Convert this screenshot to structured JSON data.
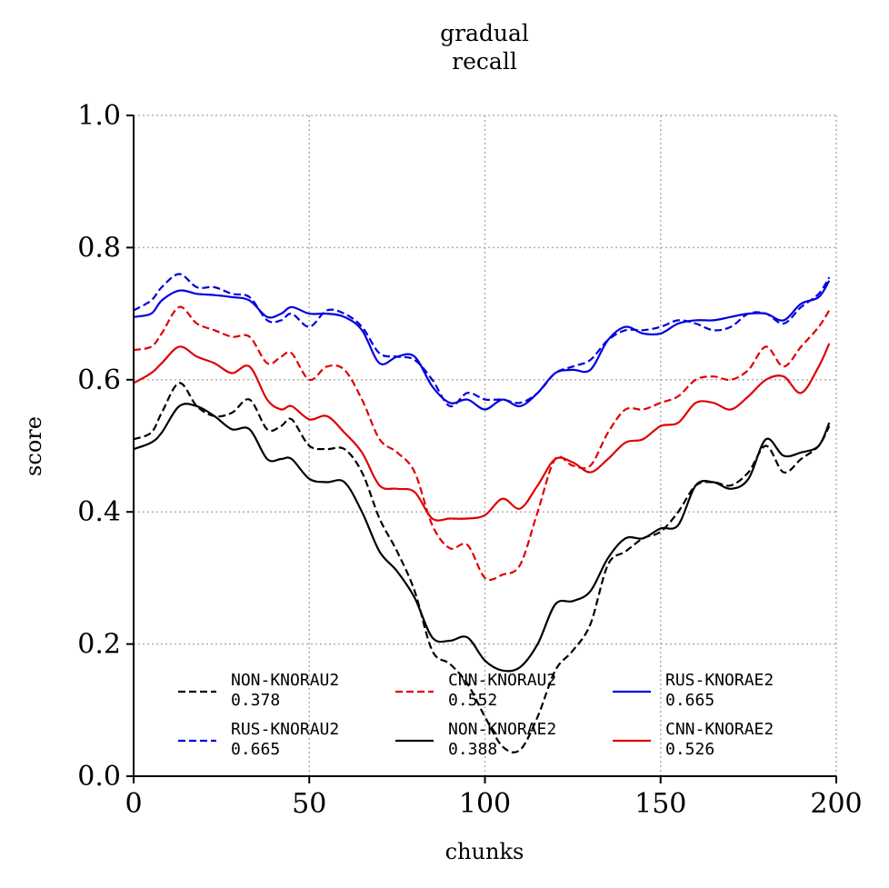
{
  "chart_data": {
    "type": "line",
    "title_line1": "gradual",
    "title_line2": "recall",
    "xlabel": "chunks",
    "ylabel": "score",
    "xlim": [
      0,
      200
    ],
    "ylim": [
      0,
      1
    ],
    "x_ticks": [
      "0",
      "50",
      "100",
      "150",
      "200"
    ],
    "y_ticks": [
      "0.0",
      "0.2",
      "0.4",
      "0.6",
      "0.8",
      "1.0"
    ],
    "grid": true,
    "legend_placement": "lower-center",
    "series": [
      {
        "name": "NON-KNORAU2",
        "value_label": "0.378",
        "color": "#000000",
        "style": "dashed",
        "x": [
          0,
          5,
          8,
          13,
          18,
          23,
          28,
          33,
          38,
          42,
          45,
          50,
          55,
          60,
          65,
          70,
          75,
          80,
          85,
          90,
          95,
          100,
          105,
          110,
          115,
          120,
          125,
          130,
          135,
          140,
          145,
          150,
          155,
          160,
          165,
          170,
          175,
          180,
          185,
          190,
          195,
          198
        ],
        "y": [
          0.51,
          0.52,
          0.55,
          0.595,
          0.56,
          0.545,
          0.55,
          0.57,
          0.525,
          0.53,
          0.54,
          0.5,
          0.495,
          0.495,
          0.46,
          0.39,
          0.34,
          0.28,
          0.19,
          0.17,
          0.14,
          0.09,
          0.045,
          0.04,
          0.09,
          0.16,
          0.19,
          0.23,
          0.32,
          0.34,
          0.36,
          0.37,
          0.4,
          0.44,
          0.445,
          0.44,
          0.46,
          0.5,
          0.46,
          0.48,
          0.5,
          0.53
        ]
      },
      {
        "name": "RUS-KNORAU2",
        "value_label": "0.665",
        "color": "#0000e0",
        "style": "dashed",
        "x": [
          0,
          5,
          8,
          13,
          18,
          23,
          28,
          33,
          38,
          42,
          45,
          50,
          55,
          60,
          65,
          70,
          75,
          80,
          85,
          90,
          95,
          100,
          105,
          110,
          115,
          120,
          125,
          130,
          135,
          140,
          145,
          150,
          155,
          160,
          165,
          170,
          175,
          180,
          185,
          190,
          195,
          198
        ],
        "y": [
          0.705,
          0.72,
          0.74,
          0.76,
          0.74,
          0.74,
          0.73,
          0.725,
          0.69,
          0.69,
          0.7,
          0.68,
          0.705,
          0.7,
          0.68,
          0.64,
          0.635,
          0.63,
          0.6,
          0.56,
          0.58,
          0.57,
          0.57,
          0.565,
          0.58,
          0.61,
          0.62,
          0.63,
          0.66,
          0.675,
          0.675,
          0.68,
          0.69,
          0.685,
          0.675,
          0.68,
          0.7,
          0.7,
          0.685,
          0.71,
          0.73,
          0.755
        ]
      },
      {
        "name": "CNN-KNORAU2",
        "value_label": "0.552",
        "color": "#e00000",
        "style": "dashed",
        "x": [
          0,
          5,
          8,
          13,
          18,
          23,
          28,
          33,
          38,
          42,
          45,
          50,
          55,
          60,
          65,
          70,
          75,
          80,
          85,
          90,
          95,
          100,
          105,
          110,
          115,
          120,
          125,
          130,
          135,
          140,
          145,
          150,
          155,
          160,
          165,
          170,
          175,
          180,
          185,
          190,
          195,
          198
        ],
        "y": [
          0.645,
          0.65,
          0.67,
          0.71,
          0.685,
          0.675,
          0.665,
          0.665,
          0.625,
          0.635,
          0.64,
          0.6,
          0.62,
          0.615,
          0.57,
          0.51,
          0.49,
          0.46,
          0.38,
          0.345,
          0.35,
          0.3,
          0.305,
          0.32,
          0.4,
          0.48,
          0.47,
          0.47,
          0.52,
          0.555,
          0.555,
          0.565,
          0.575,
          0.6,
          0.605,
          0.6,
          0.615,
          0.65,
          0.62,
          0.65,
          0.68,
          0.705
        ]
      },
      {
        "name": "NON-KNORAE2",
        "value_label": "0.388",
        "color": "#000000",
        "style": "solid",
        "x": [
          0,
          5,
          8,
          13,
          18,
          23,
          28,
          33,
          38,
          42,
          45,
          50,
          55,
          60,
          65,
          70,
          75,
          80,
          85,
          90,
          95,
          100,
          105,
          110,
          115,
          120,
          125,
          130,
          135,
          140,
          145,
          150,
          155,
          160,
          165,
          170,
          175,
          180,
          185,
          190,
          195,
          198
        ],
        "y": [
          0.495,
          0.505,
          0.52,
          0.56,
          0.56,
          0.545,
          0.525,
          0.525,
          0.48,
          0.48,
          0.48,
          0.45,
          0.445,
          0.445,
          0.4,
          0.34,
          0.31,
          0.27,
          0.21,
          0.205,
          0.21,
          0.175,
          0.16,
          0.165,
          0.2,
          0.26,
          0.265,
          0.28,
          0.33,
          0.36,
          0.36,
          0.375,
          0.38,
          0.44,
          0.445,
          0.435,
          0.45,
          0.51,
          0.485,
          0.49,
          0.5,
          0.535
        ]
      },
      {
        "name": "RUS-KNORAE2",
        "value_label": "0.665",
        "color": "#0000e0",
        "style": "solid",
        "x": [
          0,
          5,
          8,
          13,
          18,
          23,
          28,
          33,
          38,
          42,
          45,
          50,
          55,
          60,
          65,
          70,
          75,
          80,
          85,
          90,
          95,
          100,
          105,
          110,
          115,
          120,
          125,
          130,
          135,
          140,
          145,
          150,
          155,
          160,
          165,
          170,
          175,
          180,
          185,
          190,
          195,
          198
        ],
        "y": [
          0.695,
          0.7,
          0.72,
          0.735,
          0.73,
          0.728,
          0.725,
          0.72,
          0.695,
          0.7,
          0.71,
          0.7,
          0.7,
          0.695,
          0.675,
          0.625,
          0.635,
          0.635,
          0.59,
          0.565,
          0.57,
          0.555,
          0.57,
          0.56,
          0.58,
          0.61,
          0.615,
          0.615,
          0.66,
          0.68,
          0.67,
          0.67,
          0.685,
          0.69,
          0.69,
          0.695,
          0.7,
          0.7,
          0.69,
          0.715,
          0.725,
          0.75
        ]
      },
      {
        "name": "CNN-KNORAE2",
        "value_label": "0.526",
        "color": "#e00000",
        "style": "solid",
        "x": [
          0,
          5,
          8,
          13,
          18,
          23,
          28,
          33,
          38,
          42,
          45,
          50,
          55,
          60,
          65,
          70,
          75,
          80,
          85,
          90,
          95,
          100,
          105,
          110,
          115,
          120,
          125,
          130,
          135,
          140,
          145,
          150,
          155,
          160,
          165,
          170,
          175,
          180,
          185,
          190,
          195,
          198
        ],
        "y": [
          0.595,
          0.61,
          0.625,
          0.65,
          0.635,
          0.625,
          0.61,
          0.62,
          0.57,
          0.555,
          0.56,
          0.54,
          0.545,
          0.52,
          0.49,
          0.44,
          0.435,
          0.43,
          0.39,
          0.39,
          0.39,
          0.395,
          0.42,
          0.405,
          0.44,
          0.48,
          0.475,
          0.46,
          0.48,
          0.505,
          0.51,
          0.53,
          0.535,
          0.565,
          0.565,
          0.555,
          0.575,
          0.6,
          0.605,
          0.58,
          0.62,
          0.655
        ]
      }
    ]
  }
}
